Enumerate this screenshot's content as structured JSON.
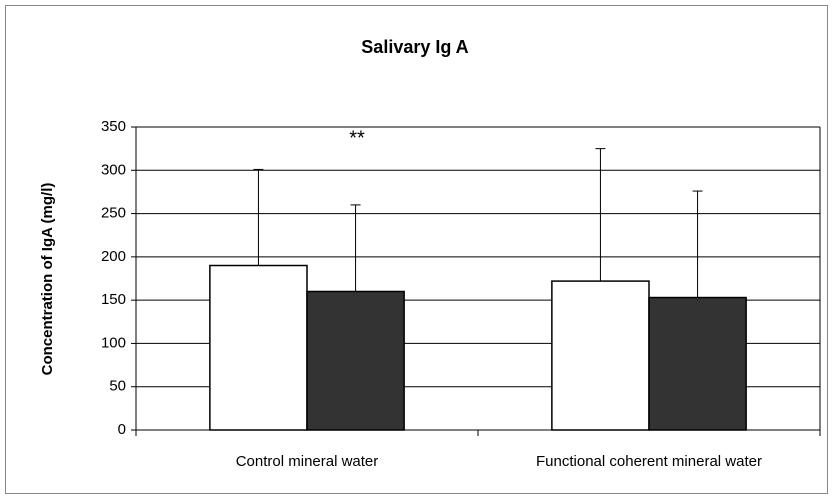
{
  "chart_data": {
    "type": "bar",
    "title": "Salivary Ig A",
    "y_label": "Concentration of IgA (mg/l)",
    "categories": [
      "Control mineral water",
      "Functional coherent mineral water"
    ],
    "series": [
      {
        "color": "#ffffff",
        "values": [
          190,
          172
        ],
        "errors": [
          111,
          153
        ]
      },
      {
        "color": "#333333",
        "values": [
          160,
          153
        ],
        "errors": [
          100,
          123
        ]
      }
    ],
    "annotations": [
      {
        "text": "**",
        "category": 0,
        "value": 345
      }
    ],
    "ylim": [
      0,
      350
    ],
    "yticks": [
      0,
      50,
      100,
      150,
      200,
      250,
      300,
      350
    ],
    "grid": true
  }
}
